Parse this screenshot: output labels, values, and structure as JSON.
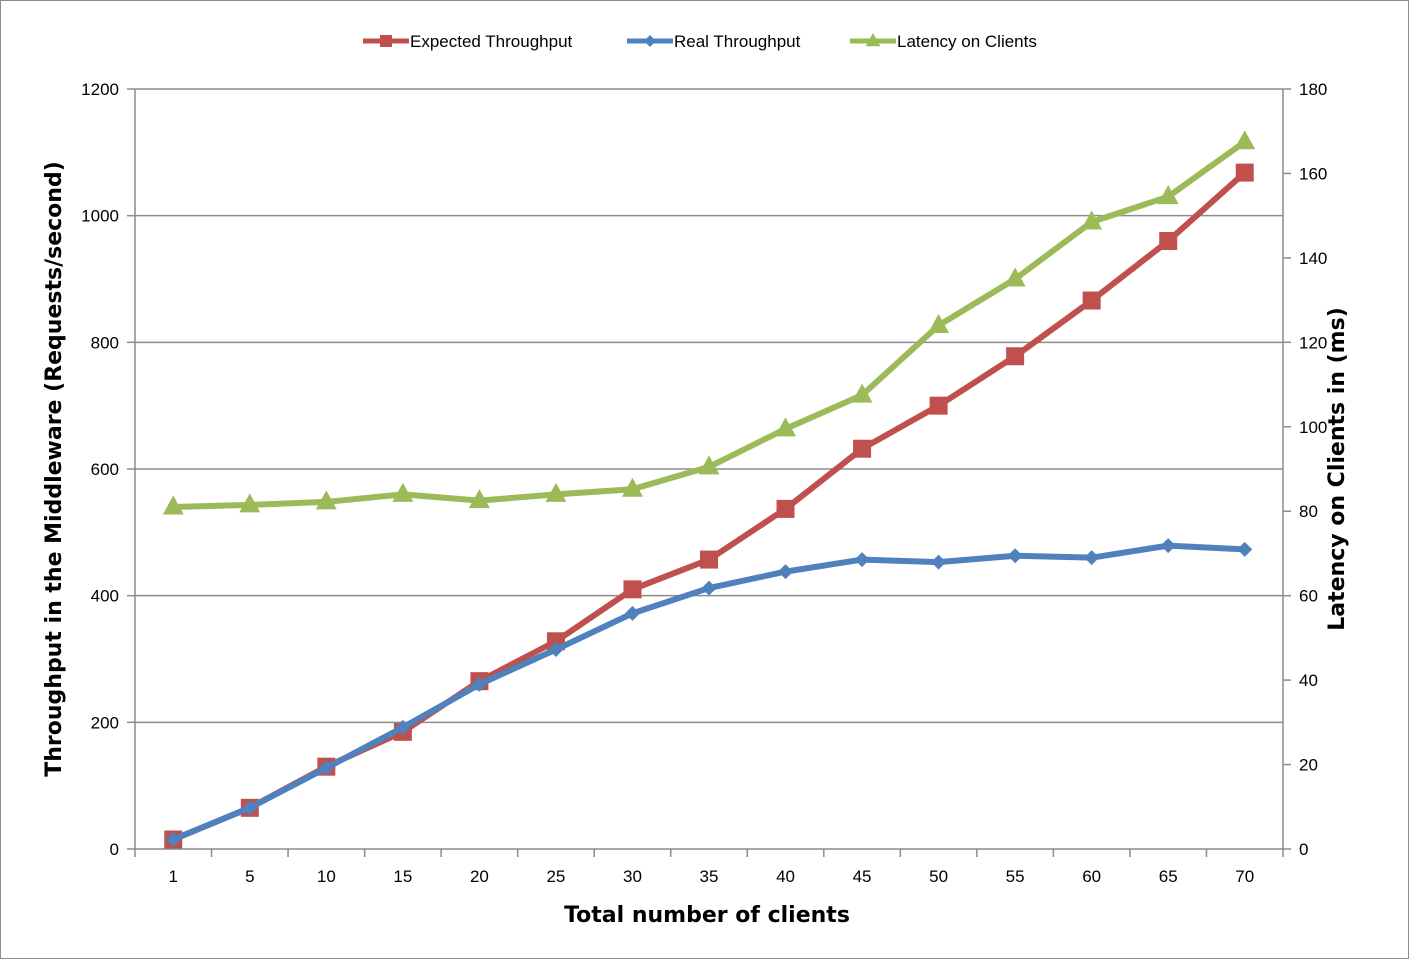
{
  "chart_data": {
    "type": "line",
    "categories": [
      "1",
      "5",
      "10",
      "15",
      "20",
      "25",
      "30",
      "35",
      "40",
      "45",
      "50",
      "55",
      "60",
      "65",
      "70"
    ],
    "series": [
      {
        "name": "Expected Throughput",
        "axis": "left",
        "marker": "square",
        "color": "#C0504D",
        "values": [
          15,
          65,
          130,
          185,
          265,
          328,
          410,
          457,
          537,
          632,
          700,
          778,
          866,
          960,
          1068
        ]
      },
      {
        "name": "Real Throughput",
        "axis": "left",
        "marker": "diamond",
        "color": "#4F81BD",
        "values": [
          15,
          65,
          128,
          192,
          260,
          315,
          372,
          412,
          438,
          457,
          453,
          463,
          460,
          479,
          473
        ]
      },
      {
        "name": "Latency on Clients",
        "axis": "right",
        "marker": "triangle",
        "color": "#9BBB59",
        "values": [
          81,
          81.5,
          82.2,
          84,
          82.5,
          84,
          85.2,
          90.5,
          99.5,
          107.5,
          124,
          135,
          148.5,
          154.5,
          167.5
        ]
      }
    ],
    "xlabel": "Total number of clients",
    "ylabel": "Throughput in the Middleware (Requests/second)",
    "y2label": "Latency on Clients in (ms)",
    "ylim": [
      0,
      1200
    ],
    "yticks": [
      0,
      200,
      400,
      600,
      800,
      1000,
      1200
    ],
    "y2lim": [
      0,
      180
    ],
    "y2ticks": [
      0,
      20,
      40,
      60,
      80,
      100,
      120,
      140,
      160,
      180
    ],
    "grid": true,
    "legend_position": "top"
  }
}
